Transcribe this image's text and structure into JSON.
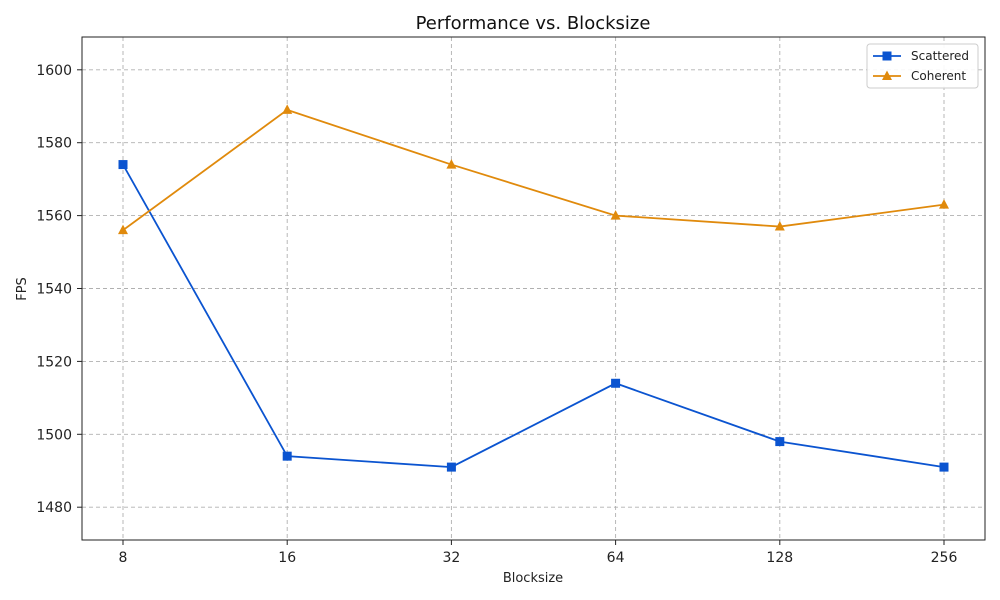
{
  "chart_data": {
    "type": "line",
    "title": "Performance vs. Blocksize",
    "xlabel": "Blocksize",
    "ylabel": "FPS",
    "categories": [
      "8",
      "16",
      "32",
      "64",
      "128",
      "256"
    ],
    "ylim": [
      1471,
      1609
    ],
    "yticks": [
      1480,
      1500,
      1520,
      1540,
      1560,
      1580,
      1600
    ],
    "grid": true,
    "legend_position": "top-right",
    "series": [
      {
        "name": "Scattered",
        "color": "#0b54d0",
        "marker": "square",
        "values": [
          1574,
          1494,
          1491,
          1514,
          1498,
          1491
        ]
      },
      {
        "name": "Coherent",
        "color": "#e08a0c",
        "marker": "triangle",
        "values": [
          1556,
          1589,
          1574,
          1560,
          1557,
          1563
        ]
      }
    ]
  }
}
